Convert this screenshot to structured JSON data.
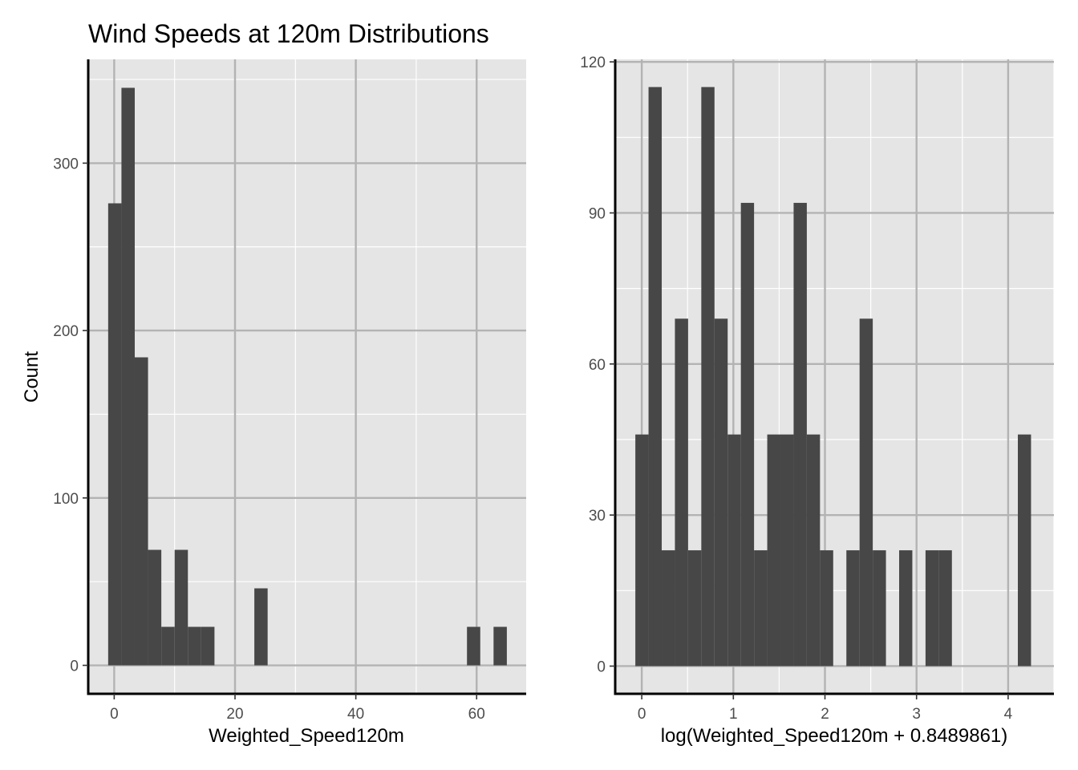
{
  "title": "Wind Speeds at 120m Distributions",
  "colors": {
    "panel_background": "#e5e5e5",
    "major_grid": "#b3b3b3",
    "minor_grid": "#ffffff",
    "bar_fill": "#474747",
    "axis_line": "#000000"
  },
  "chart_data": [
    {
      "type": "bar",
      "subtype": "histogram",
      "title": "Wind Speeds at 120m Distributions",
      "xlabel": "Weighted_Speed120m",
      "ylabel": "Count",
      "xlim": [
        -4.3,
        68.2
      ],
      "ylim": [
        -17,
        362
      ],
      "x_ticks": [
        0,
        20,
        40,
        60
      ],
      "y_ticks": [
        0,
        100,
        200,
        300
      ],
      "grid": true,
      "bin_width": 2.2,
      "bins": [
        {
          "x0": -1.0,
          "x1": 1.2,
          "count": 276
        },
        {
          "x0": 1.2,
          "x1": 3.4,
          "count": 345
        },
        {
          "x0": 3.4,
          "x1": 5.6,
          "count": 184
        },
        {
          "x0": 5.6,
          "x1": 7.8,
          "count": 69
        },
        {
          "x0": 7.8,
          "x1": 10.0,
          "count": 23
        },
        {
          "x0": 10.0,
          "x1": 12.2,
          "count": 69
        },
        {
          "x0": 12.2,
          "x1": 14.4,
          "count": 23
        },
        {
          "x0": 14.4,
          "x1": 16.6,
          "count": 23
        },
        {
          "x0": 23.2,
          "x1": 25.4,
          "count": 46
        },
        {
          "x0": 58.4,
          "x1": 60.6,
          "count": 23
        },
        {
          "x0": 62.8,
          "x1": 65.0,
          "count": 23
        }
      ]
    },
    {
      "type": "bar",
      "subtype": "histogram",
      "title": "",
      "xlabel": "log(Weighted_Speed120m + 0.8489861)",
      "ylabel": "",
      "xlim": [
        -0.29,
        4.5
      ],
      "ylim": [
        -5.5,
        120.5
      ],
      "x_ticks": [
        0,
        1,
        2,
        3,
        4
      ],
      "y_ticks": [
        0,
        30,
        60,
        90,
        120
      ],
      "grid": true,
      "bin_width": 0.144,
      "bins": [
        {
          "x0": -0.07,
          "x1": 0.074,
          "count": 46
        },
        {
          "x0": 0.074,
          "x1": 0.218,
          "count": 115
        },
        {
          "x0": 0.218,
          "x1": 0.362,
          "count": 23
        },
        {
          "x0": 0.362,
          "x1": 0.506,
          "count": 69
        },
        {
          "x0": 0.506,
          "x1": 0.65,
          "count": 23
        },
        {
          "x0": 0.65,
          "x1": 0.794,
          "count": 115
        },
        {
          "x0": 0.794,
          "x1": 0.938,
          "count": 69
        },
        {
          "x0": 0.938,
          "x1": 1.082,
          "count": 46
        },
        {
          "x0": 1.082,
          "x1": 1.226,
          "count": 92
        },
        {
          "x0": 1.226,
          "x1": 1.37,
          "count": 23
        },
        {
          "x0": 1.37,
          "x1": 1.514,
          "count": 46
        },
        {
          "x0": 1.514,
          "x1": 1.658,
          "count": 46
        },
        {
          "x0": 1.658,
          "x1": 1.802,
          "count": 92
        },
        {
          "x0": 1.802,
          "x1": 1.946,
          "count": 46
        },
        {
          "x0": 1.946,
          "x1": 2.09,
          "count": 23
        },
        {
          "x0": 2.234,
          "x1": 2.378,
          "count": 23
        },
        {
          "x0": 2.378,
          "x1": 2.522,
          "count": 69
        },
        {
          "x0": 2.522,
          "x1": 2.666,
          "count": 23
        },
        {
          "x0": 2.81,
          "x1": 2.954,
          "count": 23
        },
        {
          "x0": 3.098,
          "x1": 3.242,
          "count": 23
        },
        {
          "x0": 3.242,
          "x1": 3.386,
          "count": 23
        },
        {
          "x0": 4.106,
          "x1": 4.25,
          "count": 46
        }
      ]
    }
  ]
}
